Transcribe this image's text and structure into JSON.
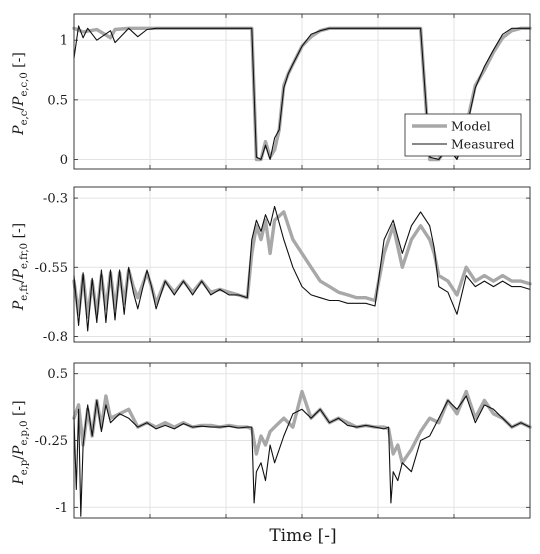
{
  "figure": {
    "xlabel": "Time [-]"
  },
  "chart_data": [
    {
      "type": "line",
      "ylabel_main": "P",
      "ylabel_sub": "e,c",
      "ylabel_den_main": "P",
      "ylabel_den_sub": "e,c,0",
      "ylabel_unit": "[-]",
      "ylim": [
        -0.08,
        1.22
      ],
      "yticks": [
        0,
        0.5,
        1
      ],
      "ytick_labels": [
        "0",
        "0.5",
        "1"
      ],
      "xlim": [
        0,
        100
      ],
      "grid": true,
      "legend": {
        "placement": "bottom-right",
        "entries": [
          "Model",
          "Measured"
        ]
      },
      "series": [
        {
          "name": "Model",
          "color": "#a8a8a8",
          "x": [
            0,
            2,
            5,
            8,
            9,
            12,
            14,
            16,
            18,
            20,
            22,
            24,
            26,
            28,
            30,
            32,
            34,
            36,
            38,
            39,
            40,
            41,
            42,
            43,
            44,
            45,
            46,
            47,
            48,
            50,
            52,
            54,
            56,
            58,
            60,
            62,
            64,
            66,
            68,
            70,
            72,
            74,
            76,
            78,
            80,
            82,
            84,
            86,
            88,
            90,
            92,
            94,
            96,
            98,
            100
          ],
          "y": [
            1.1,
            1.07,
            1.09,
            1.02,
            1.09,
            1.1,
            1.1,
            1.1,
            1.1,
            1.1,
            1.1,
            1.1,
            1.1,
            1.1,
            1.1,
            1.1,
            1.1,
            1.1,
            1.1,
            1.1,
            0.0,
            0.0,
            0.15,
            0.02,
            0.08,
            0.25,
            0.62,
            0.72,
            0.8,
            0.95,
            1.03,
            1.08,
            1.1,
            1.1,
            1.1,
            1.1,
            1.1,
            1.1,
            1.1,
            1.1,
            1.1,
            1.1,
            1.1,
            0.0,
            0.0,
            0.12,
            0.02,
            0.28,
            0.62,
            0.75,
            0.9,
            1.02,
            1.08,
            1.1,
            1.1
          ]
        },
        {
          "name": "Measured",
          "color": "#111111",
          "x": [
            0,
            1,
            2,
            3,
            5,
            8,
            9,
            12,
            14,
            16,
            18,
            20,
            22,
            24,
            26,
            28,
            30,
            32,
            34,
            36,
            38,
            39,
            40,
            41,
            42,
            43,
            44,
            45,
            46,
            47,
            48,
            50,
            52,
            54,
            56,
            58,
            60,
            62,
            64,
            66,
            68,
            70,
            72,
            74,
            76,
            78,
            80,
            82,
            84,
            86,
            88,
            90,
            92,
            94,
            96,
            98,
            100
          ],
          "y": [
            0.85,
            1.12,
            1.02,
            1.1,
            1.0,
            1.08,
            0.98,
            1.1,
            1.03,
            1.09,
            1.1,
            1.1,
            1.1,
            1.1,
            1.1,
            1.1,
            1.1,
            1.1,
            1.1,
            1.1,
            1.1,
            1.1,
            0.02,
            0.0,
            0.12,
            0.0,
            0.18,
            0.25,
            0.6,
            0.72,
            0.8,
            0.95,
            1.05,
            1.08,
            1.1,
            1.1,
            1.1,
            1.1,
            1.1,
            1.1,
            1.1,
            1.1,
            1.1,
            1.1,
            1.1,
            0.02,
            0.0,
            0.1,
            0.0,
            0.25,
            0.6,
            0.78,
            0.92,
            1.05,
            1.1,
            1.1,
            1.1
          ]
        }
      ]
    },
    {
      "type": "line",
      "ylabel_main": "P",
      "ylabel_sub": "e,fr",
      "ylabel_den_main": "P",
      "ylabel_den_sub": "e,fr,0",
      "ylabel_unit": "[-]",
      "ylim": [
        -0.82,
        -0.26
      ],
      "yticks": [
        -0.8,
        -0.55,
        -0.3
      ],
      "ytick_labels": [
        "-0.8",
        "-0.55",
        "-0.3"
      ],
      "xlim": [
        0,
        100
      ],
      "grid": true,
      "series": [
        {
          "name": "Model",
          "color": "#a8a8a8",
          "x": [
            0,
            1,
            2,
            3,
            4,
            5,
            6,
            7,
            8,
            9,
            10,
            11,
            12,
            13,
            14,
            16,
            17,
            18,
            20,
            22,
            24,
            26,
            28,
            30,
            32,
            34,
            36,
            38,
            39,
            40,
            41,
            42,
            43,
            44,
            46,
            48,
            50,
            52,
            54,
            56,
            58,
            60,
            62,
            64,
            66,
            68,
            70,
            72,
            74,
            76,
            78,
            79,
            80,
            82,
            84,
            86,
            88,
            90,
            92,
            94,
            96,
            98,
            100
          ],
          "y": [
            -0.6,
            -0.72,
            -0.58,
            -0.73,
            -0.6,
            -0.72,
            -0.58,
            -0.7,
            -0.57,
            -0.7,
            -0.57,
            -0.68,
            -0.56,
            -0.62,
            -0.66,
            -0.57,
            -0.62,
            -0.68,
            -0.6,
            -0.64,
            -0.6,
            -0.64,
            -0.6,
            -0.64,
            -0.63,
            -0.64,
            -0.65,
            -0.66,
            -0.5,
            -0.4,
            -0.45,
            -0.38,
            -0.5,
            -0.38,
            -0.35,
            -0.45,
            -0.5,
            -0.55,
            -0.6,
            -0.62,
            -0.64,
            -0.65,
            -0.66,
            -0.66,
            -0.67,
            -0.5,
            -0.4,
            -0.55,
            -0.45,
            -0.4,
            -0.45,
            -0.5,
            -0.58,
            -0.6,
            -0.65,
            -0.55,
            -0.6,
            -0.58,
            -0.6,
            -0.58,
            -0.6,
            -0.6,
            -0.61
          ]
        },
        {
          "name": "Measured",
          "color": "#111111",
          "x": [
            0,
            1,
            2,
            3,
            4,
            5,
            6,
            7,
            8,
            9,
            10,
            11,
            12,
            13,
            14,
            16,
            17,
            18,
            20,
            22,
            24,
            26,
            28,
            30,
            32,
            34,
            36,
            38,
            39,
            40,
            41,
            42,
            43,
            44,
            46,
            48,
            50,
            52,
            54,
            56,
            58,
            60,
            62,
            64,
            66,
            68,
            70,
            72,
            74,
            76,
            78,
            79,
            80,
            82,
            84,
            86,
            88,
            90,
            92,
            94,
            96,
            98,
            100
          ],
          "y": [
            -0.58,
            -0.76,
            -0.57,
            -0.78,
            -0.59,
            -0.75,
            -0.56,
            -0.75,
            -0.56,
            -0.74,
            -0.56,
            -0.72,
            -0.55,
            -0.64,
            -0.7,
            -0.56,
            -0.62,
            -0.7,
            -0.6,
            -0.65,
            -0.6,
            -0.65,
            -0.6,
            -0.65,
            -0.63,
            -0.65,
            -0.65,
            -0.66,
            -0.45,
            -0.38,
            -0.42,
            -0.36,
            -0.4,
            -0.33,
            -0.45,
            -0.55,
            -0.62,
            -0.65,
            -0.66,
            -0.67,
            -0.67,
            -0.68,
            -0.68,
            -0.68,
            -0.69,
            -0.45,
            -0.38,
            -0.5,
            -0.4,
            -0.35,
            -0.4,
            -0.48,
            -0.62,
            -0.64,
            -0.72,
            -0.58,
            -0.62,
            -0.6,
            -0.62,
            -0.6,
            -0.62,
            -0.62,
            -0.63
          ]
        }
      ]
    },
    {
      "type": "line",
      "ylabel_main": "P",
      "ylabel_sub": "e,p",
      "ylabel_den_main": "P",
      "ylabel_den_sub": "e,p,0",
      "ylabel_unit": "[-]",
      "ylim": [
        -1.12,
        0.62
      ],
      "yticks": [
        -1,
        -0.25,
        0.5
      ],
      "ytick_labels": [
        "-1",
        "-0.25",
        "0.5"
      ],
      "xlim": [
        0,
        100
      ],
      "grid": true,
      "series": [
        {
          "name": "Model",
          "color": "#a8a8a8",
          "x": [
            0,
            1,
            2,
            3,
            4,
            5,
            6,
            7,
            8,
            10,
            12,
            14,
            16,
            18,
            20,
            22,
            24,
            26,
            28,
            30,
            32,
            34,
            36,
            38,
            39,
            40,
            41,
            42,
            43,
            44,
            46,
            48,
            50,
            52,
            54,
            56,
            58,
            60,
            62,
            64,
            66,
            68,
            69,
            70,
            71,
            72,
            74,
            76,
            78,
            80,
            82,
            84,
            86,
            88,
            90,
            92,
            94,
            96,
            98,
            100
          ],
          "y": [
            0.0,
            0.15,
            -0.3,
            0.1,
            -0.2,
            0.2,
            -0.1,
            0.25,
            0.0,
            0.05,
            0.1,
            -0.1,
            -0.05,
            -0.1,
            -0.05,
            -0.1,
            -0.05,
            -0.1,
            -0.08,
            -0.08,
            -0.1,
            -0.08,
            -0.1,
            -0.1,
            -0.12,
            -0.4,
            -0.2,
            -0.3,
            -0.15,
            -0.1,
            0.0,
            -0.1,
            0.3,
            0.0,
            0.1,
            -0.05,
            0.0,
            -0.05,
            -0.1,
            -0.08,
            -0.1,
            -0.1,
            -0.12,
            -0.4,
            -0.3,
            -0.5,
            -0.35,
            -0.15,
            0.0,
            -0.05,
            0.2,
            0.05,
            0.3,
            0.0,
            0.2,
            0.05,
            0.0,
            -0.1,
            -0.05,
            -0.1
          ]
        },
        {
          "name": "Measured",
          "color": "#111111",
          "x": [
            0,
            0.5,
            1,
            1.5,
            2,
            3,
            4,
            5,
            6,
            7,
            8,
            10,
            12,
            14,
            16,
            18,
            20,
            22,
            24,
            26,
            28,
            30,
            32,
            34,
            36,
            38,
            39,
            39.5,
            40,
            41,
            42,
            43,
            44,
            46,
            48,
            50,
            52,
            54,
            56,
            58,
            60,
            62,
            64,
            66,
            68,
            69,
            69.5,
            70,
            71,
            72,
            74,
            76,
            78,
            80,
            82,
            84,
            86,
            88,
            90,
            92,
            94,
            96,
            98,
            100
          ],
          "y": [
            0.0,
            -0.8,
            0.1,
            -1.1,
            -0.3,
            0.15,
            -0.2,
            0.2,
            -0.15,
            0.15,
            -0.05,
            0.05,
            0.0,
            -0.1,
            -0.05,
            -0.12,
            -0.08,
            -0.12,
            -0.06,
            -0.1,
            -0.09,
            -0.1,
            -0.1,
            -0.09,
            -0.11,
            -0.1,
            -0.1,
            -0.95,
            -0.6,
            -0.5,
            -0.7,
            -0.3,
            -0.5,
            -0.2,
            0.05,
            0.1,
            0.0,
            0.1,
            -0.05,
            0.0,
            -0.08,
            -0.1,
            -0.08,
            -0.1,
            -0.12,
            -0.1,
            -0.95,
            -0.6,
            -0.7,
            -0.5,
            -0.6,
            -0.25,
            -0.2,
            0.0,
            0.2,
            0.1,
            0.25,
            -0.05,
            0.15,
            0.1,
            0.0,
            -0.1,
            -0.05,
            -0.1
          ]
        }
      ]
    }
  ]
}
